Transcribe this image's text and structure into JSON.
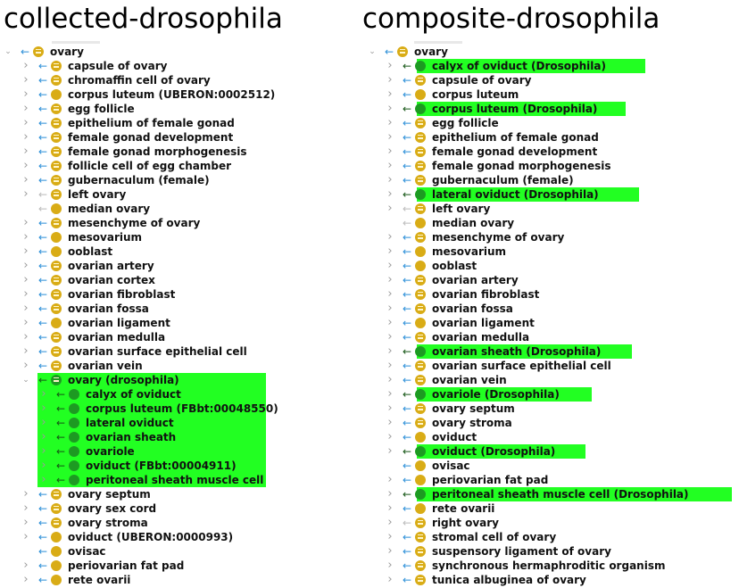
{
  "panels": [
    {
      "id": "collected",
      "title": "collected-drosophila",
      "rows": [
        {
          "label": "ovary",
          "depth": 0,
          "toggle": "open",
          "arrow": "blue",
          "icon": "lines"
        },
        {
          "label": "capsule of ovary",
          "depth": 1,
          "toggle": "closed",
          "arrow": "blue",
          "icon": "lines"
        },
        {
          "label": "chromaffin cell of ovary",
          "depth": 1,
          "toggle": "closed",
          "arrow": "blue",
          "icon": "lines"
        },
        {
          "label": "corpus luteum (UBERON:0002512)",
          "depth": 1,
          "toggle": "closed",
          "arrow": "blue",
          "icon": "plain"
        },
        {
          "label": "egg follicle",
          "depth": 1,
          "toggle": "closed",
          "arrow": "blue",
          "icon": "lines"
        },
        {
          "label": "epithelium of female gonad",
          "depth": 1,
          "toggle": "closed",
          "arrow": "blue",
          "icon": "lines"
        },
        {
          "label": "female gonad development",
          "depth": 1,
          "toggle": "closed",
          "arrow": "blue",
          "icon": "lines"
        },
        {
          "label": "female gonad morphogenesis",
          "depth": 1,
          "toggle": "closed",
          "arrow": "blue",
          "icon": "lines"
        },
        {
          "label": "follicle cell of egg chamber",
          "depth": 1,
          "toggle": "closed",
          "arrow": "blue",
          "icon": "lines"
        },
        {
          "label": "gubernaculum (female)",
          "depth": 1,
          "toggle": "closed",
          "arrow": "blue",
          "icon": "lines"
        },
        {
          "label": "left ovary",
          "depth": 1,
          "toggle": "closed",
          "arrow": "gray",
          "icon": "lines"
        },
        {
          "label": "median ovary",
          "depth": 1,
          "toggle": "none",
          "arrow": "gray",
          "icon": "plain"
        },
        {
          "label": "mesenchyme of ovary",
          "depth": 1,
          "toggle": "closed",
          "arrow": "blue",
          "icon": "lines"
        },
        {
          "label": "mesovarium",
          "depth": 1,
          "toggle": "closed",
          "arrow": "blue",
          "icon": "plain"
        },
        {
          "label": "ooblast",
          "depth": 1,
          "toggle": "closed",
          "arrow": "blue",
          "icon": "plain"
        },
        {
          "label": "ovarian artery",
          "depth": 1,
          "toggle": "closed",
          "arrow": "blue",
          "icon": "lines"
        },
        {
          "label": "ovarian cortex",
          "depth": 1,
          "toggle": "closed",
          "arrow": "blue",
          "icon": "lines"
        },
        {
          "label": "ovarian fibroblast",
          "depth": 1,
          "toggle": "closed",
          "arrow": "blue",
          "icon": "lines"
        },
        {
          "label": "ovarian fossa",
          "depth": 1,
          "toggle": "closed",
          "arrow": "blue",
          "icon": "lines"
        },
        {
          "label": "ovarian ligament",
          "depth": 1,
          "toggle": "closed",
          "arrow": "blue",
          "icon": "plain"
        },
        {
          "label": "ovarian medulla",
          "depth": 1,
          "toggle": "closed",
          "arrow": "blue",
          "icon": "lines"
        },
        {
          "label": "ovarian surface epithelial cell",
          "depth": 1,
          "toggle": "closed",
          "arrow": "blue",
          "icon": "lines"
        },
        {
          "label": "ovarian vein",
          "depth": 1,
          "toggle": "closed",
          "arrow": "blue",
          "icon": "lines"
        },
        {
          "label": "ovary (drosophila)",
          "depth": 1,
          "toggle": "open",
          "arrow": "dark",
          "icon": "green-lines",
          "highlight": true,
          "hl_group": "start"
        },
        {
          "label": "calyx of oviduct",
          "depth": 2,
          "toggle": "closed",
          "arrow": "dark",
          "icon": "green",
          "highlight": true
        },
        {
          "label": "corpus luteum (FBbt:00048550)",
          "depth": 2,
          "toggle": "closed",
          "arrow": "dark",
          "icon": "green",
          "highlight": true
        },
        {
          "label": "lateral oviduct",
          "depth": 2,
          "toggle": "closed",
          "arrow": "dark",
          "icon": "green",
          "highlight": true
        },
        {
          "label": "ovarian sheath",
          "depth": 2,
          "toggle": "closed",
          "arrow": "dark",
          "icon": "green",
          "highlight": true
        },
        {
          "label": "ovariole",
          "depth": 2,
          "toggle": "closed",
          "arrow": "dark",
          "icon": "green",
          "highlight": true
        },
        {
          "label": "oviduct (FBbt:00004911)",
          "depth": 2,
          "toggle": "closed",
          "arrow": "dark",
          "icon": "green",
          "highlight": true
        },
        {
          "label": "peritoneal sheath muscle cell",
          "depth": 2,
          "toggle": "closed",
          "arrow": "dark",
          "icon": "green",
          "highlight": true
        },
        {
          "label": "ovary septum",
          "depth": 1,
          "toggle": "closed",
          "arrow": "blue",
          "icon": "lines"
        },
        {
          "label": "ovary sex cord",
          "depth": 1,
          "toggle": "closed",
          "arrow": "blue",
          "icon": "lines"
        },
        {
          "label": "ovary stroma",
          "depth": 1,
          "toggle": "closed",
          "arrow": "blue",
          "icon": "lines"
        },
        {
          "label": "oviduct (UBERON:0000993)",
          "depth": 1,
          "toggle": "closed",
          "arrow": "blue",
          "icon": "plain"
        },
        {
          "label": "ovisac",
          "depth": 1,
          "toggle": "none",
          "arrow": "blue",
          "icon": "plain"
        },
        {
          "label": "periovarian fat pad",
          "depth": 1,
          "toggle": "closed",
          "arrow": "blue",
          "icon": "plain"
        },
        {
          "label": "rete ovarii",
          "depth": 1,
          "toggle": "closed",
          "arrow": "blue",
          "icon": "plain"
        }
      ]
    },
    {
      "id": "composite",
      "title": "composite-drosophila",
      "rows": [
        {
          "label": "ovary",
          "depth": 0,
          "toggle": "open",
          "arrow": "blue",
          "icon": "lines"
        },
        {
          "label": "calyx of oviduct (Drosophila)",
          "depth": 1,
          "toggle": "closed",
          "arrow": "dark",
          "icon": "green",
          "highlight": true
        },
        {
          "label": "capsule of ovary",
          "depth": 1,
          "toggle": "closed",
          "arrow": "blue",
          "icon": "lines"
        },
        {
          "label": "corpus luteum",
          "depth": 1,
          "toggle": "closed",
          "arrow": "blue",
          "icon": "plain"
        },
        {
          "label": "corpus luteum (Drosophila)",
          "depth": 1,
          "toggle": "closed",
          "arrow": "dark",
          "icon": "green",
          "highlight": true
        },
        {
          "label": "egg follicle",
          "depth": 1,
          "toggle": "closed",
          "arrow": "blue",
          "icon": "lines"
        },
        {
          "label": "epithelium of female gonad",
          "depth": 1,
          "toggle": "closed",
          "arrow": "blue",
          "icon": "lines"
        },
        {
          "label": "female gonad development",
          "depth": 1,
          "toggle": "closed",
          "arrow": "blue",
          "icon": "lines"
        },
        {
          "label": "female gonad morphogenesis",
          "depth": 1,
          "toggle": "closed",
          "arrow": "blue",
          "icon": "lines"
        },
        {
          "label": "gubernaculum (female)",
          "depth": 1,
          "toggle": "closed",
          "arrow": "blue",
          "icon": "lines"
        },
        {
          "label": "lateral oviduct (Drosophila)",
          "depth": 1,
          "toggle": "closed",
          "arrow": "dark",
          "icon": "green",
          "highlight": true
        },
        {
          "label": "left ovary",
          "depth": 1,
          "toggle": "closed",
          "arrow": "gray",
          "icon": "lines"
        },
        {
          "label": "median ovary",
          "depth": 1,
          "toggle": "none",
          "arrow": "gray",
          "icon": "plain"
        },
        {
          "label": "mesenchyme of ovary",
          "depth": 1,
          "toggle": "closed",
          "arrow": "blue",
          "icon": "lines"
        },
        {
          "label": "mesovarium",
          "depth": 1,
          "toggle": "closed",
          "arrow": "blue",
          "icon": "plain"
        },
        {
          "label": "ooblast",
          "depth": 1,
          "toggle": "closed",
          "arrow": "blue",
          "icon": "plain"
        },
        {
          "label": "ovarian artery",
          "depth": 1,
          "toggle": "closed",
          "arrow": "blue",
          "icon": "lines"
        },
        {
          "label": "ovarian fibroblast",
          "depth": 1,
          "toggle": "closed",
          "arrow": "blue",
          "icon": "lines"
        },
        {
          "label": "ovarian fossa",
          "depth": 1,
          "toggle": "closed",
          "arrow": "blue",
          "icon": "lines"
        },
        {
          "label": "ovarian ligament",
          "depth": 1,
          "toggle": "closed",
          "arrow": "blue",
          "icon": "plain"
        },
        {
          "label": "ovarian medulla",
          "depth": 1,
          "toggle": "closed",
          "arrow": "blue",
          "icon": "lines"
        },
        {
          "label": "ovarian sheath (Drosophila)",
          "depth": 1,
          "toggle": "closed",
          "arrow": "dark",
          "icon": "green",
          "highlight": true
        },
        {
          "label": "ovarian surface epithelial cell",
          "depth": 1,
          "toggle": "closed",
          "arrow": "blue",
          "icon": "lines"
        },
        {
          "label": "ovarian vein",
          "depth": 1,
          "toggle": "closed",
          "arrow": "blue",
          "icon": "lines"
        },
        {
          "label": "ovariole (Drosophila)",
          "depth": 1,
          "toggle": "closed",
          "arrow": "dark",
          "icon": "green",
          "highlight": true
        },
        {
          "label": "ovary septum",
          "depth": 1,
          "toggle": "closed",
          "arrow": "blue",
          "icon": "lines"
        },
        {
          "label": "ovary stroma",
          "depth": 1,
          "toggle": "closed",
          "arrow": "blue",
          "icon": "lines"
        },
        {
          "label": "oviduct",
          "depth": 1,
          "toggle": "closed",
          "arrow": "blue",
          "icon": "plain"
        },
        {
          "label": "oviduct (Drosophila)",
          "depth": 1,
          "toggle": "closed",
          "arrow": "dark",
          "icon": "green",
          "highlight": true
        },
        {
          "label": "ovisac",
          "depth": 1,
          "toggle": "none",
          "arrow": "blue",
          "icon": "plain"
        },
        {
          "label": "periovarian fat pad",
          "depth": 1,
          "toggle": "closed",
          "arrow": "blue",
          "icon": "plain"
        },
        {
          "label": "peritoneal sheath muscle cell (Drosophila)",
          "depth": 1,
          "toggle": "closed",
          "arrow": "dark",
          "icon": "green",
          "highlight": true
        },
        {
          "label": "rete ovarii",
          "depth": 1,
          "toggle": "closed",
          "arrow": "blue",
          "icon": "plain"
        },
        {
          "label": "right ovary",
          "depth": 1,
          "toggle": "closed",
          "arrow": "gray",
          "icon": "lines"
        },
        {
          "label": "stromal cell of ovary",
          "depth": 1,
          "toggle": "closed",
          "arrow": "blue",
          "icon": "lines"
        },
        {
          "label": "suspensory ligament of ovary",
          "depth": 1,
          "toggle": "closed",
          "arrow": "blue",
          "icon": "lines"
        },
        {
          "label": "synchronous hermaphroditic organism",
          "depth": 1,
          "toggle": "closed",
          "arrow": "blue",
          "icon": "lines"
        },
        {
          "label": "tunica albuginea of ovary",
          "depth": 1,
          "toggle": "closed",
          "arrow": "blue",
          "icon": "lines"
        }
      ]
    }
  ],
  "colors": {
    "highlight": "#22ff22",
    "class_icon": "#d9ac16",
    "drosophila_icon": "#1d9a22",
    "arrow_blue": "#2c8fd8",
    "arrow_gray": "#bbbbbb"
  },
  "icons": {
    "toggle_open": "chevron-down-icon",
    "toggle_closed": "chevron-right-icon",
    "arrow": "left-arrow-icon",
    "class": "class-circle-icon"
  }
}
